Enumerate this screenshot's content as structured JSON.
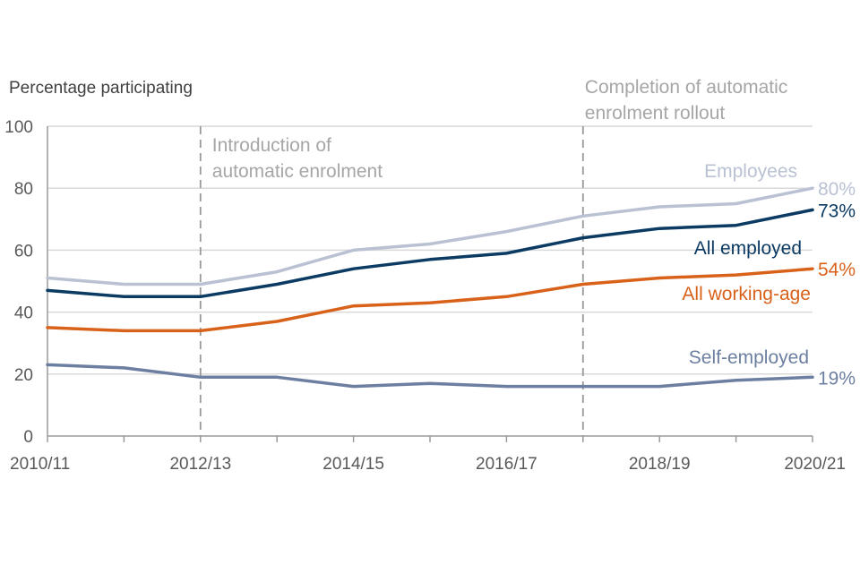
{
  "chart_data": {
    "type": "line",
    "ylabel": "Percentage participating",
    "ylim": [
      0,
      100
    ],
    "yticks": [
      "0",
      "20",
      "40",
      "60",
      "80",
      "100"
    ],
    "x": [
      "2010/11",
      "2011/12",
      "2012/13",
      "2013/14",
      "2014/15",
      "2015/16",
      "2016/17",
      "2017/18",
      "2018/19",
      "2019/20",
      "2020/21"
    ],
    "xticks_shown": [
      "2010/11",
      "2012/13",
      "2014/15",
      "2016/17",
      "2018/19",
      "2020/21"
    ],
    "grid": true,
    "series": [
      {
        "name": "Employees",
        "color": "#b9c1d3",
        "values": [
          51,
          49,
          49,
          53,
          60,
          62,
          66,
          71,
          74,
          75,
          80
        ],
        "end_label": "80%"
      },
      {
        "name": "All employed",
        "color": "#0b3a63",
        "values": [
          47,
          45,
          45,
          49,
          54,
          57,
          59,
          64,
          67,
          68,
          73
        ],
        "end_label": "73%"
      },
      {
        "name": "All working-age",
        "color": "#d9621b",
        "values": [
          35,
          34,
          34,
          37,
          42,
          43,
          45,
          49,
          51,
          52,
          54
        ],
        "end_label": "54%"
      },
      {
        "name": "Self-employed",
        "color": "#6d7fa1",
        "values": [
          23,
          22,
          19,
          19,
          16,
          17,
          16,
          16,
          16,
          18,
          19
        ],
        "end_label": "19%"
      }
    ],
    "annotations": [
      {
        "at_x": "2012/13",
        "lines": [
          "Introduction of",
          "automatic enrolment"
        ]
      },
      {
        "at_x": "2017/18",
        "lines": [
          "Completion of automatic",
          "enrolment rollout"
        ]
      }
    ]
  },
  "colors": {
    "grid": "#d9d9d9",
    "axis": "#9a9a9a",
    "tick_text": "#595959",
    "annotation": "#a6a6a6",
    "refline": "#9a9a9a"
  }
}
